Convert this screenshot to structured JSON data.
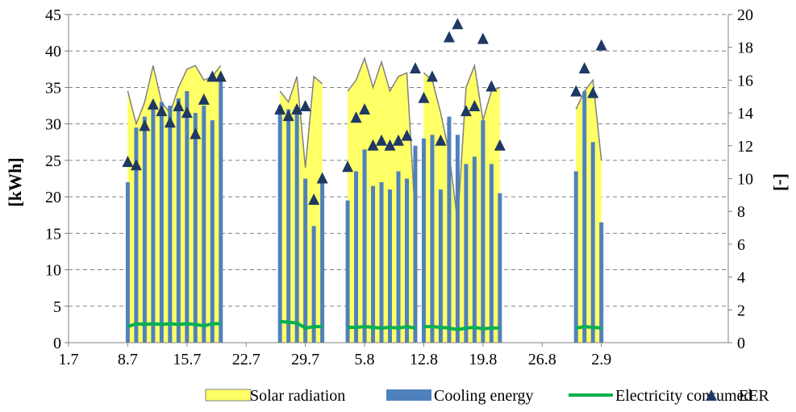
{
  "chart_data": {
    "type": "bar",
    "title": "",
    "ylabel": "[kWh]",
    "y2label": "[-]",
    "xlabel": "",
    "ylim": [
      0,
      45
    ],
    "y2lim": [
      0,
      20
    ],
    "yticks": [
      0,
      5,
      10,
      15,
      20,
      25,
      30,
      35,
      40,
      45
    ],
    "y2ticks": [
      0,
      2,
      4,
      6,
      8,
      10,
      12,
      14,
      16,
      18,
      20
    ],
    "x_range": [
      0,
      78
    ],
    "xticks": [
      {
        "x": 0,
        "label": "1.7"
      },
      {
        "x": 7,
        "label": "8.7"
      },
      {
        "x": 14,
        "label": "15.7"
      },
      {
        "x": 21,
        "label": "22.7"
      },
      {
        "x": 28,
        "label": "29.7"
      },
      {
        "x": 35,
        "label": "5.8"
      },
      {
        "x": 42,
        "label": "12.8"
      },
      {
        "x": 49,
        "label": "19.8"
      },
      {
        "x": 56,
        "label": "26.8"
      },
      {
        "x": 63,
        "label": "2.9"
      }
    ],
    "grid": "horizontal dashed",
    "legend_position": "bottom",
    "colors": {
      "solar": "#ffff66",
      "solar_edge": "#808080",
      "cooling": "#4f81bd",
      "electricity": "#00b050",
      "eer": "#1f3864"
    },
    "series": [
      {
        "name": "Solar radiation",
        "kind": "area",
        "axis": "left",
        "segments": [
          {
            "x": [
              7,
              8,
              9,
              10,
              11,
              12,
              13,
              14,
              15,
              16,
              17,
              18
            ],
            "values": [
              34.5,
              30,
              33,
              38,
              33,
              31.5,
              35,
              37.5,
              38,
              36,
              36.5,
              38
            ]
          },
          {
            "x": [
              25,
              26,
              27,
              28,
              29,
              30
            ],
            "values": [
              34.5,
              33,
              36.5,
              24,
              36.5,
              35.5
            ]
          },
          {
            "x": [
              33,
              34,
              35,
              36,
              37,
              38,
              39,
              40,
              41
            ],
            "values": [
              34.5,
              36,
              39,
              35,
              38.5,
              34.5,
              36.5,
              37,
              17
            ]
          },
          {
            "x": [
              42,
              43,
              44,
              45,
              46,
              47,
              48,
              49,
              50,
              51
            ],
            "values": [
              37,
              36,
              31.5,
              26,
              16.5,
              35,
              38,
              30.5,
              34.5,
              35
            ]
          },
          {
            "x": [
              60,
              61,
              62,
              63
            ],
            "values": [
              32,
              34.5,
              36,
              25
            ]
          }
        ]
      },
      {
        "name": "Cooling energy",
        "kind": "bar",
        "axis": "left",
        "x": [
          7,
          8,
          9,
          10,
          11,
          12,
          13,
          14,
          15,
          16,
          17,
          18,
          25,
          26,
          27,
          28,
          29,
          30,
          33,
          34,
          35,
          36,
          37,
          38,
          39,
          40,
          41,
          42,
          43,
          44,
          45,
          46,
          47,
          48,
          49,
          50,
          51,
          60,
          61,
          62,
          63
        ],
        "values": [
          22,
          29.5,
          31,
          32,
          33,
          32.5,
          33.5,
          34.5,
          31.5,
          32.5,
          30.5,
          36,
          32.5,
          32,
          32,
          22.5,
          16,
          22.5,
          19.5,
          23.5,
          26.5,
          21.5,
          22,
          21,
          23.5,
          22.5,
          27,
          28,
          28.5,
          21,
          31,
          28.5,
          24.5,
          25.5,
          30.5,
          24.5,
          20.5,
          23.5,
          34.5,
          27.5,
          16.5
        ]
      },
      {
        "name": "Electricity consumed",
        "kind": "line",
        "axis": "left",
        "segments": [
          {
            "x": [
              7,
              8,
              9,
              10,
              11,
              12,
              13,
              14,
              15,
              16,
              17,
              18
            ],
            "values": [
              2.2,
              2.6,
              2.5,
              2.6,
              2.5,
              2.6,
              2.5,
              2.6,
              2.5,
              2.3,
              2.6,
              2.6
            ]
          },
          {
            "x": [
              25,
              26,
              27,
              28,
              29,
              30
            ],
            "values": [
              2.9,
              2.8,
              2.7,
              2.0,
              2.2,
              2.2
            ]
          },
          {
            "x": [
              33,
              34,
              35,
              36,
              37,
              38,
              39,
              40,
              41
            ],
            "values": [
              2.1,
              2.1,
              2.2,
              2.1,
              2.0,
              2.1,
              2.0,
              2.2,
              2.0
            ]
          },
          {
            "x": [
              42,
              43,
              44,
              45,
              46,
              47,
              48,
              49,
              50,
              51
            ],
            "values": [
              2.2,
              2.2,
              2.1,
              2.0,
              1.8,
              2.0,
              2.1,
              1.9,
              2.0,
              2.0
            ]
          },
          {
            "x": [
              60,
              61,
              62,
              63
            ],
            "values": [
              2.0,
              2.2,
              2.1,
              2.0
            ]
          }
        ]
      },
      {
        "name": "EER",
        "kind": "scatter",
        "axis": "right",
        "x": [
          7,
          8,
          9,
          10,
          11,
          12,
          13,
          14,
          15,
          16,
          17,
          18,
          25,
          26,
          27,
          28,
          29,
          30,
          33,
          34,
          35,
          36,
          37,
          38,
          39,
          40,
          41,
          42,
          43,
          44,
          45,
          46,
          47,
          48,
          49,
          50,
          51,
          60,
          61,
          62,
          63
        ],
        "values": [
          11.0,
          10.8,
          13.2,
          14.5,
          14.1,
          13.4,
          14.4,
          14.0,
          12.7,
          14.8,
          16.2,
          16.2,
          14.2,
          13.8,
          14.2,
          14.4,
          8.7,
          10.0,
          10.7,
          13.7,
          14.2,
          12.0,
          12.3,
          12.0,
          12.3,
          12.6,
          16.7,
          14.9,
          16.2,
          12.3,
          18.6,
          19.4,
          14.1,
          14.4,
          18.5,
          15.6,
          12.0,
          15.3,
          16.7,
          15.2,
          18.1
        ]
      }
    ],
    "legend": [
      "Solar radiation",
      "Cooling energy",
      "Electricity consumed",
      "EER"
    ]
  }
}
